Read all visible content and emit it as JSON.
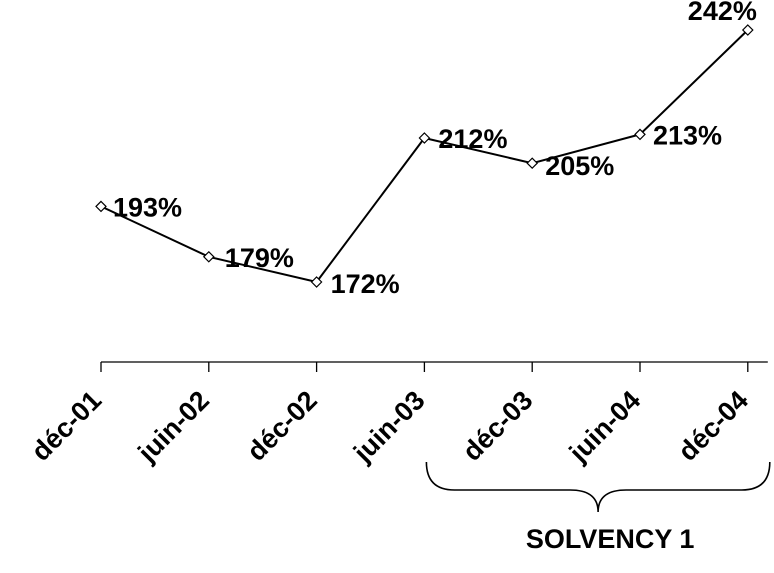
{
  "chart_data": {
    "type": "line",
    "categories": [
      "déc-01",
      "juin-02",
      "déc-02",
      "juin-03",
      "déc-03",
      "juin-04",
      "déc-04"
    ],
    "series": [
      {
        "values": [
          193,
          179,
          172,
          212,
          205,
          213,
          242
        ],
        "labels": [
          "193%",
          "179%",
          "172%",
          "212%",
          "205%",
          "213%",
          "242%"
        ]
      }
    ],
    "marker": "diamond",
    "line_color": "#000000",
    "y_axis_visible": false,
    "grid": false,
    "legend": "none",
    "annotation": {
      "text": "SOLVENCY 1",
      "spans_categories": [
        "juin-03",
        "déc-04"
      ]
    }
  }
}
